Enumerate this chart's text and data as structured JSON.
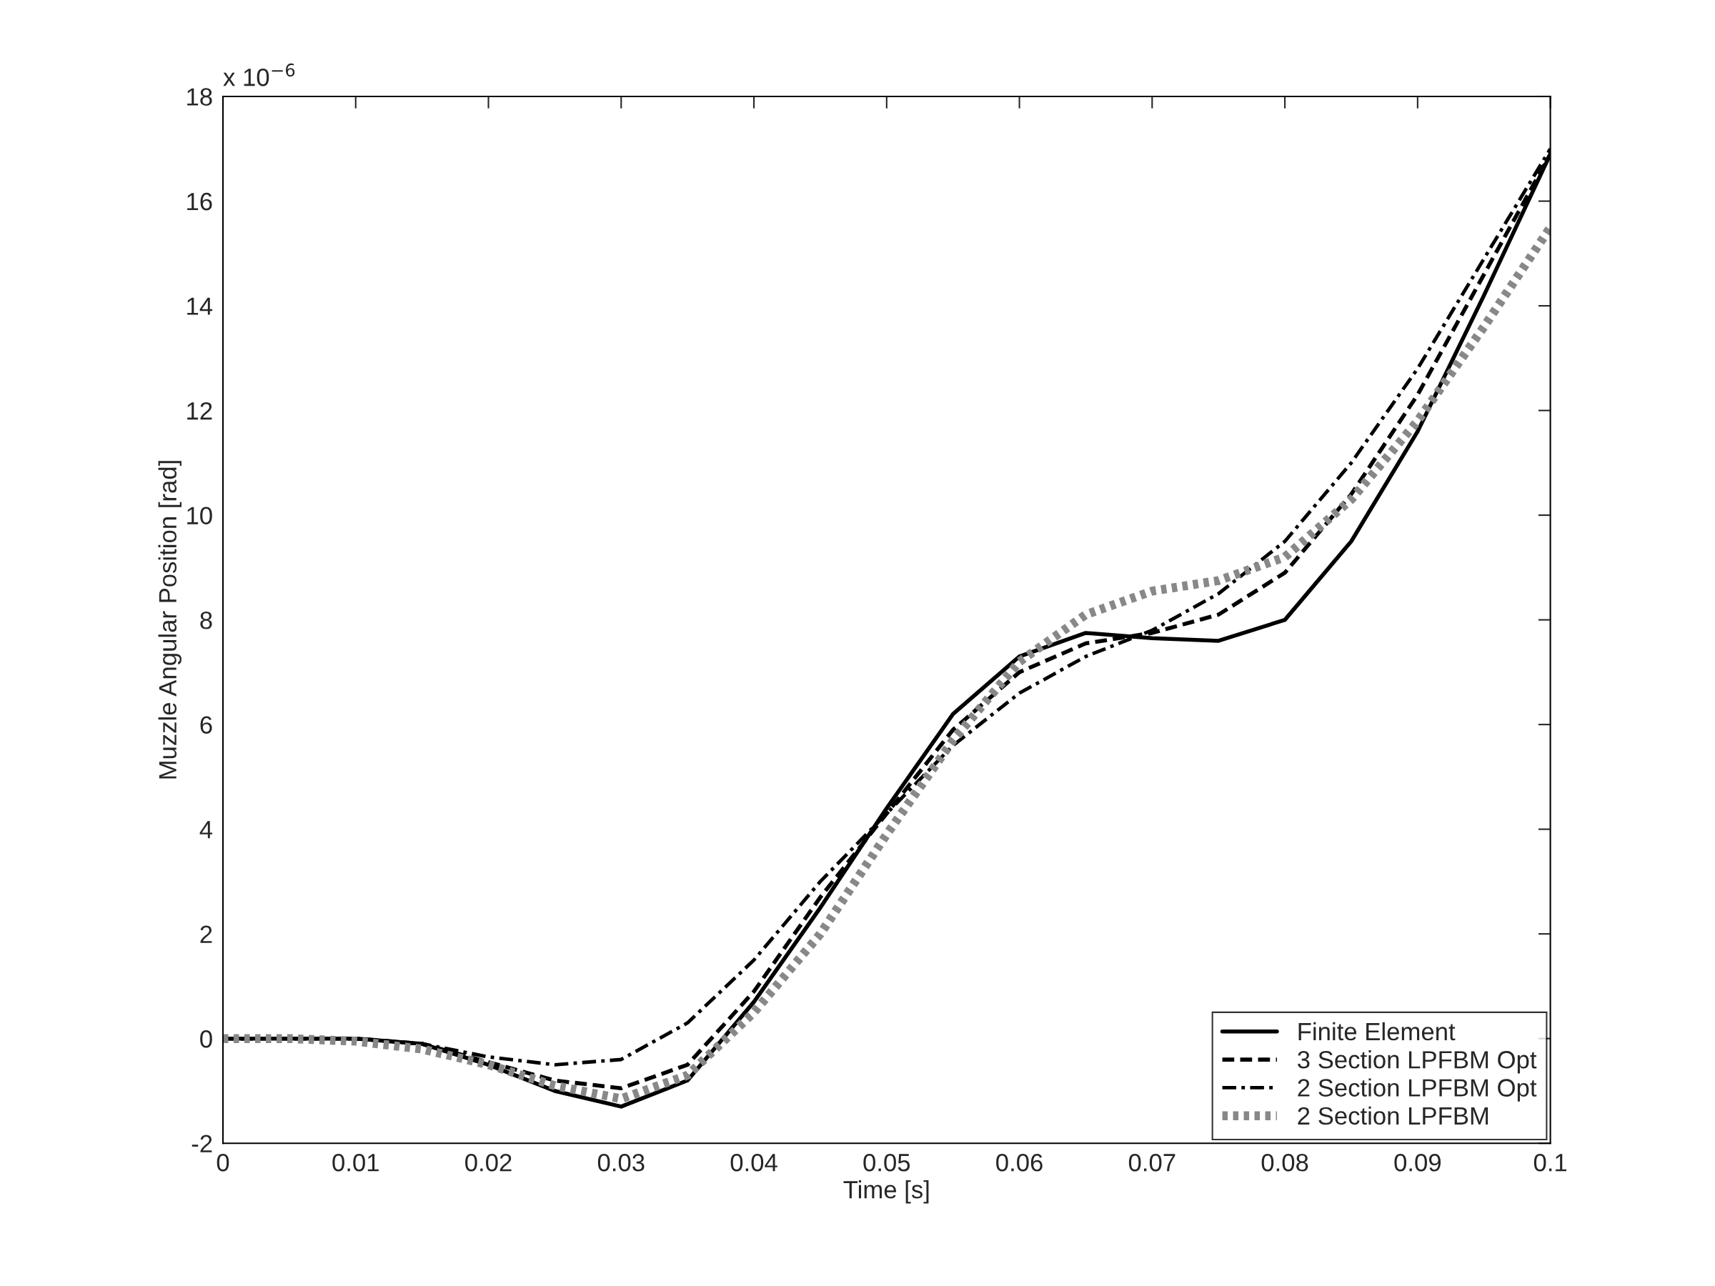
{
  "chart_data": {
    "type": "line",
    "xlabel": "Time [s]",
    "ylabel": "Muzzle Angular Position [rad]",
    "annotations": [
      "x 10$^{−6}$"
    ],
    "x": [
      0,
      0.005,
      0.01,
      0.015,
      0.02,
      0.025,
      0.03,
      0.035,
      0.04,
      0.045,
      0.05,
      0.055,
      0.06,
      0.065,
      0.07,
      0.075,
      0.08,
      0.085,
      0.09,
      0.095,
      0.1
    ],
    "series": [
      {
        "name": "Finite Element",
        "color": "#000000",
        "line_style": "solid",
        "values": [
          0,
          0,
          0,
          -0.1,
          -0.5,
          -1.0,
          -1.3,
          -0.8,
          0.7,
          2.5,
          4.4,
          6.2,
          7.3,
          7.75,
          7.65,
          7.6,
          8.0,
          9.5,
          11.6,
          14.2,
          16.9
        ]
      },
      {
        "name": "3 Section LPFBM Opt",
        "color": "#000000",
        "line_style": "dashed",
        "values": [
          0,
          0,
          0,
          -0.1,
          -0.45,
          -0.8,
          -0.95,
          -0.5,
          0.9,
          2.7,
          4.3,
          5.9,
          7.0,
          7.55,
          7.75,
          8.1,
          8.9,
          10.4,
          12.3,
          14.6,
          16.9
        ]
      },
      {
        "name": "2 Section LPFBM Opt",
        "color": "#000000",
        "line_style": "dashdot",
        "values": [
          0,
          0,
          0,
          -0.1,
          -0.35,
          -0.5,
          -0.4,
          0.3,
          1.5,
          3.0,
          4.3,
          5.6,
          6.6,
          7.3,
          7.8,
          8.5,
          9.5,
          11.0,
          12.8,
          14.9,
          17.0
        ]
      },
      {
        "name": "2 Section LPFBM",
        "color": "#888888",
        "line_style": "dotted",
        "values": [
          0,
          0,
          -0.05,
          -0.2,
          -0.5,
          -0.9,
          -1.15,
          -0.7,
          0.5,
          2.0,
          3.9,
          5.7,
          7.2,
          8.1,
          8.55,
          8.75,
          9.2,
          10.3,
          11.8,
          13.6,
          15.5
        ]
      }
    ],
    "xlim": [
      0,
      0.1
    ],
    "xticks": [
      0,
      0.01,
      0.02,
      0.03,
      0.04,
      0.05,
      0.06,
      0.07,
      0.08,
      0.09,
      0.1
    ],
    "ylim": [
      -2,
      18
    ],
    "yticks": [
      -2,
      0,
      2,
      4,
      6,
      8,
      10,
      12,
      14,
      16,
      18
    ],
    "grid": false,
    "legend": "bottom right"
  }
}
